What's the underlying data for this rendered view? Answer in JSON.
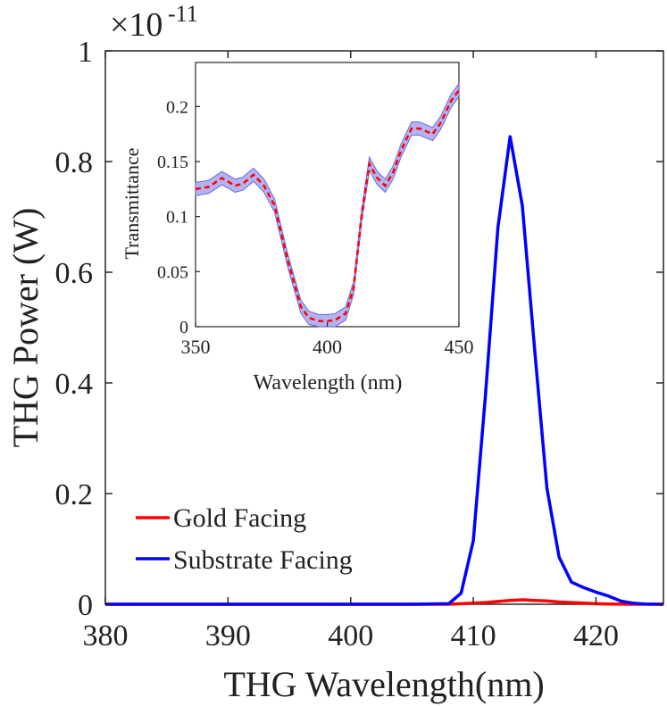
{
  "chart_data": [
    {
      "type": "line",
      "xlabel": "THG Wavelength(nm)",
      "ylabel": "THG Power (W)",
      "exponent_label": "×10",
      "exponent_value": "-11",
      "xlim": [
        380,
        425.5
      ],
      "ylim": [
        0,
        1
      ],
      "xticks": [
        "380",
        "390",
        "400",
        "410",
        "420"
      ],
      "yticks": [
        "0",
        "0.2",
        "0.4",
        "0.6",
        "0.8",
        "1"
      ],
      "legend_position": "lower-left",
      "series": [
        {
          "name": "Gold Facing",
          "color": "#ff0000",
          "x": [
            380,
            390,
            400,
            405,
            408,
            409,
            410,
            411,
            412,
            413,
            414,
            415,
            416,
            417,
            418,
            419,
            420,
            421,
            422,
            423,
            424,
            425.5
          ],
          "y": [
            0,
            0,
            0,
            0,
            0,
            0.001,
            0.002,
            0.003,
            0.005,
            0.007,
            0.008,
            0.007,
            0.006,
            0.004,
            0.003,
            0.002,
            0.001,
            0.0005,
            0.0002,
            0,
            0,
            0
          ]
        },
        {
          "name": "Substrate Facing",
          "color": "#0000ff",
          "x": [
            380,
            390,
            400,
            405,
            408,
            409,
            410,
            411,
            412,
            413,
            414,
            415,
            416,
            417,
            418,
            419,
            420,
            421,
            422,
            423,
            424,
            425.5
          ],
          "y": [
            0,
            0,
            0,
            0,
            0.001,
            0.02,
            0.115,
            0.38,
            0.68,
            0.845,
            0.72,
            0.46,
            0.21,
            0.085,
            0.04,
            0.03,
            0.022,
            0.015,
            0.006,
            0.002,
            0.0005,
            0
          ]
        }
      ]
    },
    {
      "type": "line",
      "inset": true,
      "xlabel": "Wavelength (nm)",
      "ylabel": "Transmittance",
      "xlim": [
        350,
        450
      ],
      "ylim": [
        0,
        0.24
      ],
      "xticks": [
        "350",
        "400",
        "450"
      ],
      "yticks": [
        "0",
        "0.05",
        "0.1",
        "0.15",
        "0.2"
      ],
      "series": [
        {
          "color": "#ff0000",
          "band_color": "#b3b3f0",
          "x": [
            350,
            355,
            360,
            365,
            368,
            372,
            376,
            380,
            385,
            390,
            393,
            397,
            400,
            403,
            407,
            410,
            413,
            416,
            419,
            422,
            425,
            428,
            432,
            435,
            440,
            443,
            447,
            450
          ],
          "y": [
            0.125,
            0.127,
            0.135,
            0.128,
            0.13,
            0.138,
            0.128,
            0.11,
            0.06,
            0.018,
            0.008,
            0.005,
            0.005,
            0.006,
            0.012,
            0.035,
            0.1,
            0.148,
            0.135,
            0.128,
            0.14,
            0.16,
            0.18,
            0.18,
            0.175,
            0.185,
            0.205,
            0.215
          ],
          "band_halfwidth": 0.006
        }
      ]
    }
  ]
}
